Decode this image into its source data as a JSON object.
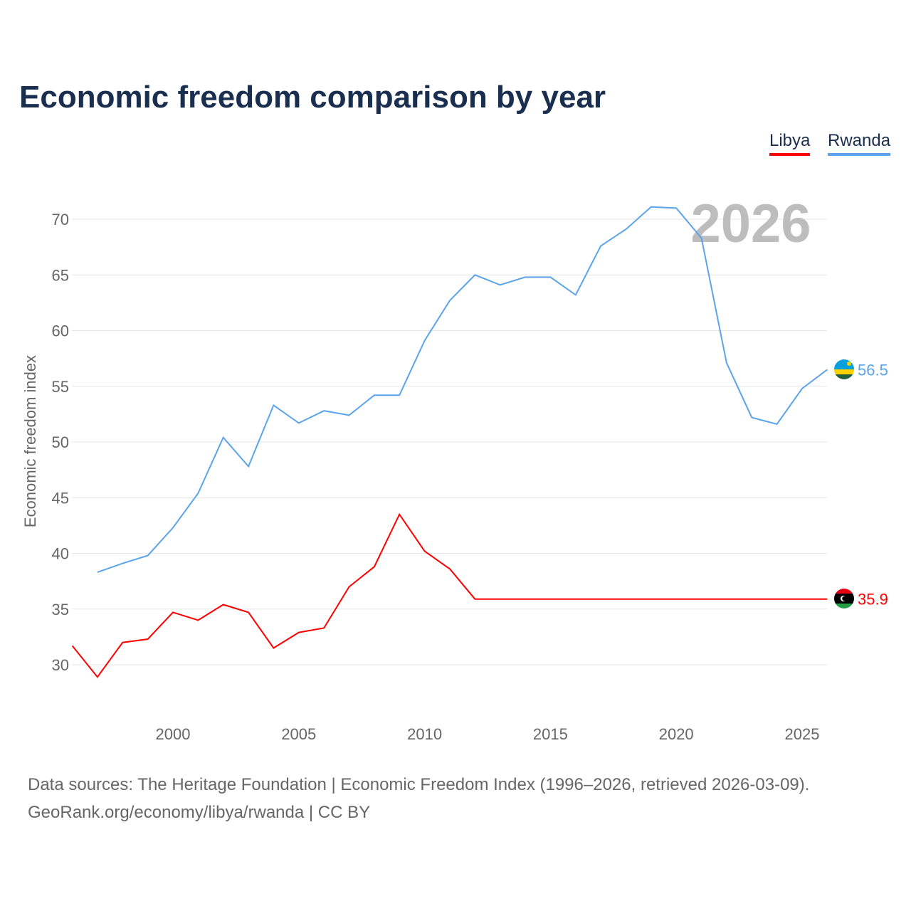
{
  "title": "Economic freedom comparison by year",
  "watermark_year": "2026",
  "source_line1": "Data sources: The Heritage Foundation | Economic Freedom Index (1996–2026, retrieved 2026-03-09).",
  "source_line2": "GeoRank.org/economy/libya/rwanda | CC BY",
  "chart_data": {
    "type": "line",
    "title": "Economic freedom comparison by year",
    "xlabel": "",
    "ylabel": "Economic freedom index",
    "xlim": [
      1996,
      2026
    ],
    "ylim": [
      25,
      73
    ],
    "yticks": [
      30,
      35,
      40,
      45,
      50,
      55,
      60,
      65,
      70
    ],
    "xticks": [
      2000,
      2005,
      2010,
      2015,
      2020,
      2025
    ],
    "grid": true,
    "legend_placement": "top-right",
    "series": [
      {
        "name": "Libya",
        "color": "#ff0000",
        "end_label": "35.9",
        "x": [
          1996,
          1997,
          1998,
          1999,
          2000,
          2001,
          2002,
          2003,
          2004,
          2005,
          2006,
          2007,
          2008,
          2009,
          2010,
          2011,
          2012,
          2013,
          2014,
          2015,
          2016,
          2017,
          2018,
          2019,
          2020,
          2021,
          2022,
          2023,
          2024,
          2025,
          2026
        ],
        "values": [
          31.7,
          28.9,
          32.0,
          32.3,
          34.7,
          34.0,
          35.4,
          34.7,
          31.5,
          32.9,
          33.3,
          37.0,
          38.8,
          43.5,
          40.2,
          38.6,
          35.9,
          35.9,
          35.9,
          35.9,
          35.9,
          35.9,
          35.9,
          35.9,
          35.9,
          35.9,
          35.9,
          35.9,
          35.9,
          35.9,
          35.9
        ]
      },
      {
        "name": "Rwanda",
        "color": "#5ba4eb",
        "end_label": "56.5",
        "x": [
          1997,
          1998,
          1999,
          2000,
          2001,
          2002,
          2003,
          2004,
          2005,
          2006,
          2007,
          2008,
          2009,
          2010,
          2011,
          2012,
          2013,
          2014,
          2015,
          2016,
          2017,
          2018,
          2019,
          2020,
          2021,
          2022,
          2023,
          2024,
          2025,
          2026
        ],
        "values": [
          38.3,
          39.1,
          39.8,
          42.3,
          45.4,
          50.4,
          47.8,
          53.3,
          51.7,
          52.8,
          52.4,
          54.2,
          54.2,
          59.1,
          62.7,
          65.0,
          64.1,
          64.8,
          64.8,
          63.2,
          67.6,
          69.1,
          71.1,
          71.0,
          68.3,
          57.1,
          52.2,
          51.6,
          54.8,
          56.5
        ]
      }
    ]
  }
}
